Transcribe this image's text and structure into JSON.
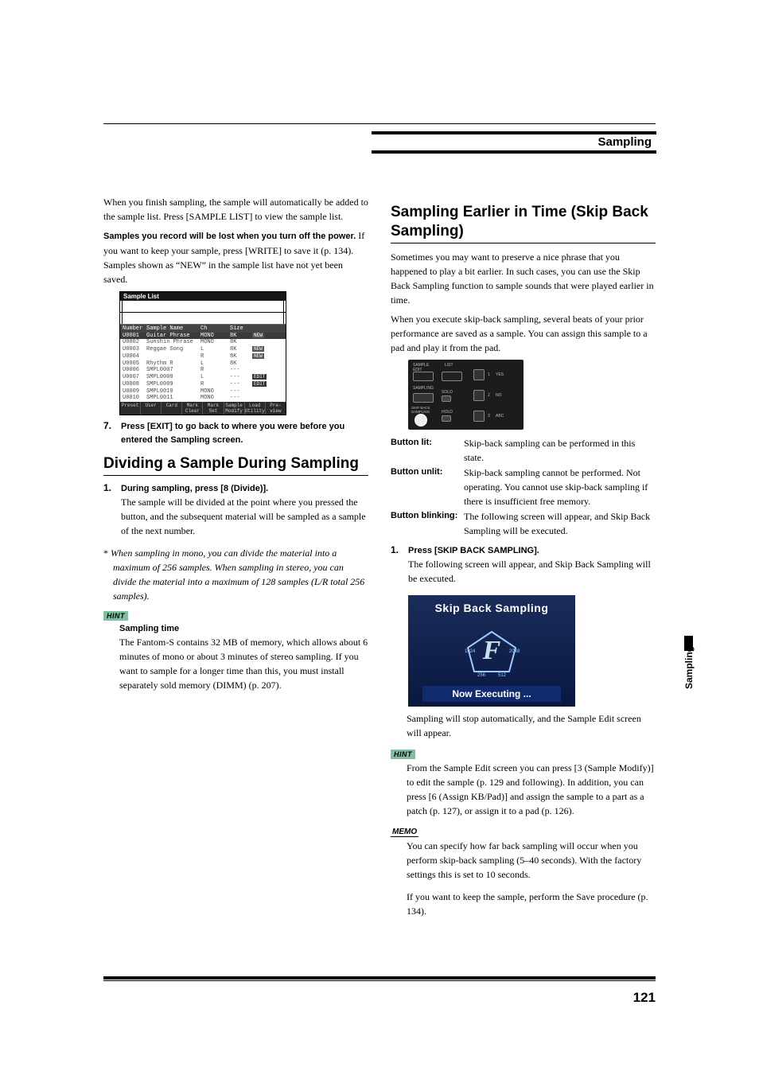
{
  "header": {
    "section": "Sampling"
  },
  "sidetab": "Sampling",
  "page_number": "121",
  "left": {
    "intro1": "When you finish sampling, the sample will automatically be added to the sample list. Press [SAMPLE LIST] to view the sample list.",
    "warn_head": "Samples you record will be lost when you turn off the power.",
    "warn_body": " If you want to keep your sample, press [WRITE] to save it (p. 134). Samples shown as “NEW” in the sample list have not yet been saved.",
    "sample_list": {
      "title": "Sample List",
      "columns": [
        "Number",
        "Sample Name",
        "Ch",
        "Size"
      ],
      "rows": [
        {
          "num": "U0001",
          "name": "Guitar Phrase",
          "ch": "MONO",
          "size": "8K",
          "tag": "NEW",
          "sel": true
        },
        {
          "num": "U0002",
          "name": "Sunshin Phrase",
          "ch": "MONO",
          "size": "8K",
          "tag": ""
        },
        {
          "num": "U0003",
          "name": "Reggae Song",
          "ch": "L",
          "size": "8K",
          "tag": "NEW"
        },
        {
          "num": "U0004",
          "name": "",
          "ch": "R",
          "size": "8K",
          "tag": "NEW"
        },
        {
          "num": "U0005",
          "name": "Rhythm R",
          "ch": "L",
          "size": "8K",
          "tag": ""
        },
        {
          "num": "U0006",
          "name": "SMPL0007",
          "ch": "R",
          "size": "---",
          "tag": ""
        },
        {
          "num": "U0007",
          "name": "SMPL0008",
          "ch": "L",
          "size": "---",
          "tag": "EDIT"
        },
        {
          "num": "U0008",
          "name": "SMPL0009",
          "ch": "R",
          "size": "---",
          "tag": "EDIT"
        },
        {
          "num": "U0009",
          "name": "SMPL0010",
          "ch": "MONO",
          "size": "---",
          "tag": ""
        },
        {
          "num": "U0010",
          "name": "SMPL0011",
          "ch": "MONO",
          "size": "---",
          "tag": ""
        }
      ],
      "footer": [
        "Preset",
        "User",
        "Card",
        "Mark Clear",
        "Mark Set",
        "Sample Modify",
        "Load Utility",
        "Pre-view"
      ]
    },
    "step7": "Press [EXIT] to go back to where you were before you entered the Sampling screen.",
    "h2a": "Dividing a Sample During Sampling",
    "step1_title": "During sampling, press [8 (Divide)].",
    "step1_body": "The sample will be divided at the point where you pressed the button, and the subsequent material will be sampled as a sample of the next number.",
    "note": "When sampling in mono, you can divide the material into a maximum of 256 samples. When sampling in stereo, you can divide the material into a maximum of 128 samples (L/R total 256 samples).",
    "hint_label": "HINT",
    "hint_head": "Sampling time",
    "hint_body": "The Fantom-S contains 32 MB of memory, which allows about 6 minutes of mono or about 3 minutes of stereo sampling. If you want to sample for a longer time than this, you must install separately sold memory (DIMM) (p. 207)."
  },
  "right": {
    "h2b": "Sampling Earlier in Time (Skip Back Sampling)",
    "p1": "Sometimes you may want to preserve a nice phrase that you happened to play a bit earlier. In such cases, you can use the Skip Back Sampling function to sample sounds that were played earlier in time.",
    "p2": "When you execute skip-back sampling, several beats of your prior performance are saved as a sample. You can assign this sample to a pad and play it from the pad.",
    "defs": [
      {
        "term": "Button lit:",
        "desc": "Skip-back sampling can be performed in this state."
      },
      {
        "term": "Button unlit:",
        "desc": "Skip-back sampling cannot be performed. Not operating. You cannot use skip-back sampling if there is insufficient free memory."
      },
      {
        "term": "Button blinking:",
        "desc": "The following screen will appear, and Skip Back Sampling will be executed."
      }
    ],
    "step1_title": "Press [SKIP BACK SAMPLING].",
    "step1_body": "The following screen will appear, and Skip Back Sampling will be executed.",
    "skipshot": {
      "title": "Skip Back Sampling",
      "footer": "Now Executing ..."
    },
    "after": "Sampling will stop automatically, and the Sample Edit screen will appear.",
    "hint_label": "HINT",
    "hint_body": "From the Sample Edit screen you can press [3 (Sample Modify)] to edit the sample (p. 129 and following). In addition, you can press [6 (Assign KB/Pad)] and assign the sample to a part as a patch (p. 127), or assign it to a pad (p. 126).",
    "memo_label": "MEMO",
    "memo_body": "You can specify how far back sampling will occur when you perform skip-back sampling (5–40 seconds). With the factory settings this is set to 10 seconds.",
    "tail": "If you want to keep the sample, perform the Save procedure (p. 134)."
  }
}
